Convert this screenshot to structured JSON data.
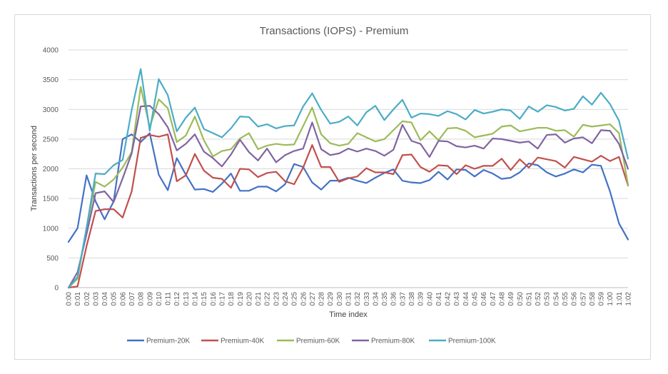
{
  "chart_data": {
    "type": "line",
    "title": "Transactions (IOPS) - Premium",
    "xlabel": "Time index",
    "ylabel": "Transactions per second",
    "ylim": [
      0,
      4000
    ],
    "yticks": [
      0,
      500,
      1000,
      1500,
      2000,
      2500,
      3000,
      3500,
      4000
    ],
    "grid": true,
    "legend_position": "bottom",
    "categories": [
      "0:00",
      "0:01",
      "0:02",
      "0:03",
      "0:04",
      "0:05",
      "0:06",
      "0:07",
      "0:08",
      "0:09",
      "0:10",
      "0:11",
      "0:12",
      "0:13",
      "0:14",
      "0:15",
      "0:16",
      "0:17",
      "0:18",
      "0:19",
      "0:20",
      "0:21",
      "0:22",
      "0:23",
      "0:24",
      "0:25",
      "0:26",
      "0:27",
      "0:28",
      "0:29",
      "0:30",
      "0:31",
      "0:32",
      "0:33",
      "0:34",
      "0:35",
      "0:36",
      "0:37",
      "0:38",
      "0:39",
      "0:40",
      "0:41",
      "0:42",
      "0:43",
      "0:44",
      "0:45",
      "0:46",
      "0:47",
      "0:48",
      "0:49",
      "0:50",
      "0:51",
      "0:52",
      "0:53",
      "0:54",
      "0:55",
      "0:56",
      "0:57",
      "0:58",
      "0:59",
      "1:00",
      "1:01",
      "1:02"
    ],
    "series": [
      {
        "name": "Premium-20K",
        "color": "#4472c4",
        "values": [
          770,
          1000,
          1890,
          1450,
          1150,
          1450,
          2500,
          2580,
          2450,
          2600,
          1900,
          1640,
          2180,
          1900,
          1650,
          1660,
          1610,
          1750,
          1920,
          1630,
          1630,
          1700,
          1700,
          1620,
          1740,
          2080,
          2030,
          1770,
          1650,
          1800,
          1800,
          1850,
          1800,
          1760,
          1850,
          1930,
          1990,
          1800,
          1770,
          1760,
          1810,
          1950,
          1820,
          1990,
          1980,
          1870,
          1980,
          1920,
          1830,
          1850,
          1940,
          2090,
          2060,
          1940,
          1870,
          1920,
          1990,
          1940,
          2070,
          2050,
          1620,
          1080,
          810
        ]
      },
      {
        "name": "Premium-40K",
        "color": "#c0504d",
        "values": [
          0,
          20,
          700,
          1290,
          1320,
          1320,
          1180,
          1620,
          2520,
          2570,
          2540,
          2580,
          1790,
          1890,
          2250,
          1970,
          1850,
          1830,
          1680,
          2000,
          1990,
          1860,
          1930,
          1950,
          1790,
          1740,
          2020,
          2400,
          2030,
          2030,
          1780,
          1840,
          1870,
          2010,
          1940,
          1940,
          1910,
          2230,
          2240,
          2030,
          1950,
          2060,
          2050,
          1910,
          2060,
          2000,
          2050,
          2050,
          2170,
          1980,
          2160,
          2020,
          2190,
          2160,
          2130,
          2020,
          2200,
          2160,
          2120,
          2220,
          2130,
          2200,
          1720
        ]
      },
      {
        "name": "Premium-60K",
        "color": "#9bbb59",
        "values": [
          0,
          150,
          1000,
          1780,
          1700,
          1820,
          2020,
          2280,
          3380,
          2700,
          3170,
          3020,
          2450,
          2560,
          2880,
          2480,
          2210,
          2300,
          2330,
          2510,
          2600,
          2330,
          2390,
          2420,
          2400,
          2410,
          2720,
          3030,
          2580,
          2430,
          2390,
          2420,
          2600,
          2530,
          2460,
          2500,
          2650,
          2800,
          2780,
          2480,
          2630,
          2480,
          2680,
          2690,
          2640,
          2530,
          2560,
          2590,
          2710,
          2730,
          2630,
          2660,
          2690,
          2690,
          2640,
          2650,
          2540,
          2740,
          2710,
          2730,
          2750,
          2600,
          1730
        ]
      },
      {
        "name": "Premium-80K",
        "color": "#8064a2",
        "values": [
          0,
          260,
          900,
          1590,
          1620,
          1440,
          1840,
          2260,
          3050,
          3060,
          2920,
          2700,
          2310,
          2420,
          2580,
          2290,
          2180,
          2040,
          2240,
          2490,
          2280,
          2140,
          2340,
          2110,
          2230,
          2300,
          2340,
          2780,
          2330,
          2230,
          2260,
          2340,
          2290,
          2340,
          2300,
          2220,
          2320,
          2740,
          2470,
          2420,
          2200,
          2470,
          2460,
          2380,
          2360,
          2390,
          2340,
          2510,
          2500,
          2470,
          2440,
          2460,
          2340,
          2570,
          2580,
          2440,
          2510,
          2530,
          2430,
          2650,
          2640,
          2420,
          2000
        ]
      },
      {
        "name": "Premium-100K",
        "color": "#4bacc6",
        "values": [
          0,
          180,
          1010,
          1920,
          1910,
          2060,
          2150,
          2990,
          3680,
          2640,
          3510,
          3240,
          2630,
          2860,
          3030,
          2670,
          2600,
          2530,
          2680,
          2880,
          2870,
          2710,
          2750,
          2680,
          2720,
          2730,
          3050,
          3270,
          2990,
          2760,
          2790,
          2880,
          2730,
          2950,
          3060,
          2820,
          3000,
          3160,
          2860,
          2930,
          2920,
          2890,
          2970,
          2920,
          2830,
          2990,
          2930,
          2960,
          3000,
          2980,
          2840,
          3050,
          2960,
          3070,
          3040,
          2980,
          3010,
          3220,
          3080,
          3280,
          3090,
          2810,
          2170
        ]
      }
    ]
  }
}
